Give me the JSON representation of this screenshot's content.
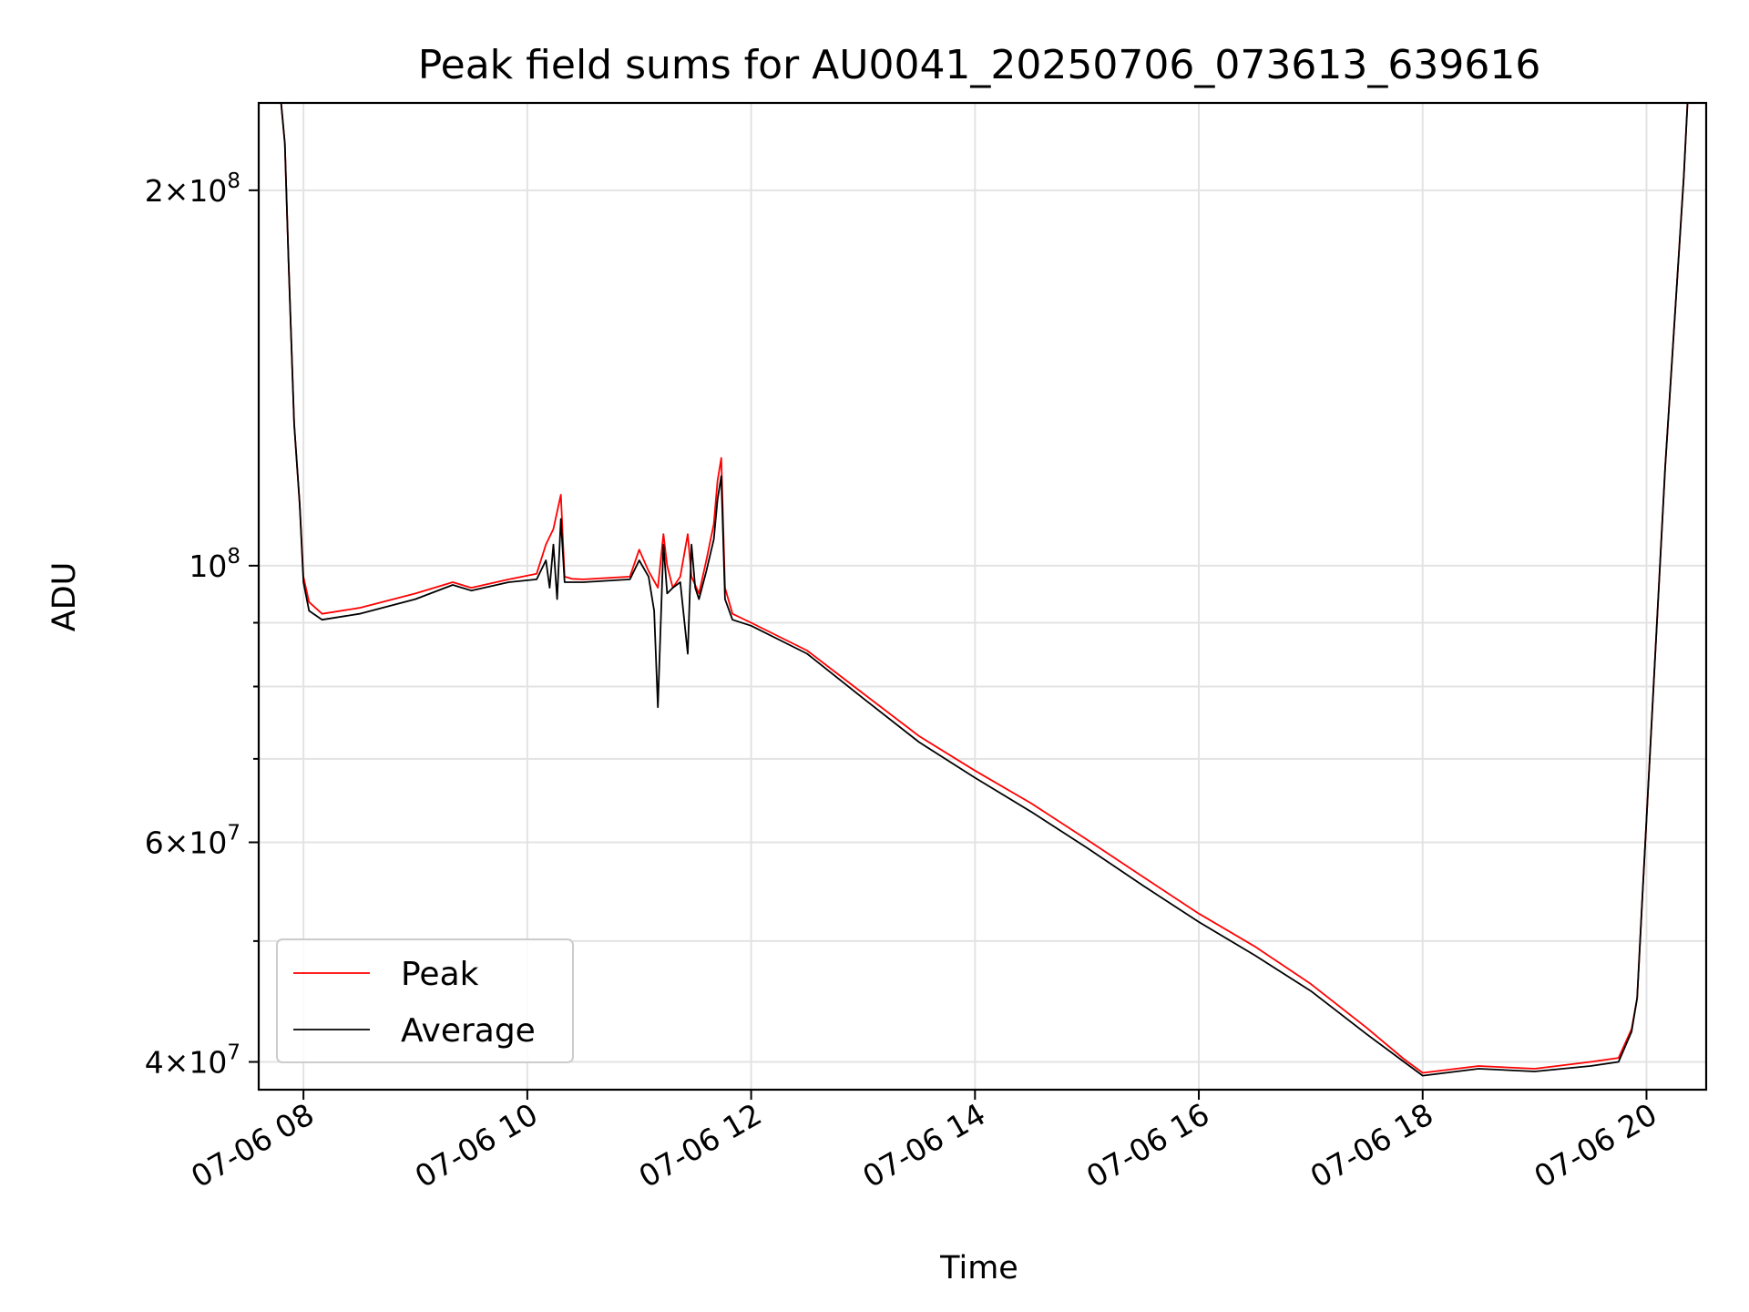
{
  "chart_data": {
    "type": "line",
    "title": "Peak field sums for AU0041_20250706_073613_639616",
    "xlabel": "Time",
    "ylabel": "ADU",
    "y_scale": "log",
    "xlim": [
      "07-06 07:36",
      "07-06 20:32"
    ],
    "ylim": [
      38000000,
      235000000
    ],
    "x_ticks": [
      "07-06 08",
      "07-06 10",
      "07-06 12",
      "07-06 14",
      "07-06 16",
      "07-06 18",
      "07-06 20"
    ],
    "y_ticks": [
      {
        "value": 40000000,
        "mantissa": "4",
        "exponent": "7"
      },
      {
        "value": 60000000,
        "mantissa": "6",
        "exponent": "7"
      },
      {
        "value": 100000000,
        "mantissa": "",
        "exponent": "8"
      },
      {
        "value": 200000000,
        "mantissa": "2",
        "exponent": "8"
      }
    ],
    "y_minor_ticks": [
      50000000,
      70000000,
      80000000,
      90000000
    ],
    "grid": true,
    "legend": {
      "position": "lower-left",
      "entries": [
        {
          "name": "Peak",
          "color": "#ff0000"
        },
        {
          "name": "Average",
          "color": "#000000"
        }
      ]
    },
    "series": [
      {
        "name": "Peak",
        "color": "#ff0000",
        "x": [
          "07:36",
          "07:48",
          "07:50",
          "07:52",
          "07:55",
          "07:58",
          "08:00",
          "08:03",
          "08:10",
          "08:30",
          "09:00",
          "09:20",
          "09:30",
          "09:50",
          "10:05",
          "10:10",
          "10:14",
          "10:18",
          "10:20",
          "10:24",
          "10:30",
          "10:55",
          "11:00",
          "11:05",
          "11:10",
          "11:13",
          "11:15",
          "11:18",
          "11:22",
          "11:26",
          "11:28",
          "11:32",
          "11:36",
          "11:40",
          "11:42",
          "11:44",
          "11:46",
          "11:50",
          "12:00",
          "12:30",
          "13:00",
          "13:30",
          "14:00",
          "14:30",
          "15:00",
          "15:30",
          "16:00",
          "16:30",
          "17:00",
          "17:30",
          "17:50",
          "18:00",
          "18:30",
          "19:00",
          "19:30",
          "19:45",
          "19:52",
          "19:55",
          "19:58",
          "20:10",
          "20:20",
          "20:22"
        ],
        "values": [
          235000000,
          235000000,
          218000000,
          175000000,
          130000000,
          112000000,
          98000000,
          93500000,
          91500000,
          92500000,
          95000000,
          97000000,
          96000000,
          97500000,
          98500000,
          104000000,
          107000000,
          114000000,
          98000000,
          97600000,
          97500000,
          98000000,
          103000000,
          99000000,
          96000000,
          106000000,
          100000000,
          96000000,
          98000000,
          106000000,
          98000000,
          95000000,
          101000000,
          108000000,
          117000000,
          122000000,
          96000000,
          91500000,
          90000000,
          85500000,
          79000000,
          73000000,
          68500000,
          64500000,
          60300000,
          56300000,
          52600000,
          49500000,
          46200000,
          42600000,
          40200000,
          39200000,
          39700000,
          39500000,
          40000000,
          40300000,
          42500000,
          45000000,
          55000000,
          120000000,
          205000000,
          235000000
        ]
      },
      {
        "name": "Average",
        "color": "#000000",
        "x": [
          "07:36",
          "07:48",
          "07:50",
          "07:52",
          "07:55",
          "07:58",
          "08:00",
          "08:03",
          "08:10",
          "08:30",
          "09:00",
          "09:20",
          "09:30",
          "09:50",
          "10:05",
          "10:10",
          "10:12",
          "10:14",
          "10:16",
          "10:18",
          "10:20",
          "10:24",
          "10:30",
          "10:55",
          "11:00",
          "11:05",
          "11:08",
          "11:10",
          "11:13",
          "11:15",
          "11:18",
          "11:22",
          "11:26",
          "11:28",
          "11:30",
          "11:32",
          "11:36",
          "11:40",
          "11:42",
          "11:44",
          "11:46",
          "11:50",
          "12:00",
          "12:30",
          "13:00",
          "13:30",
          "14:00",
          "14:30",
          "15:00",
          "15:30",
          "16:00",
          "16:30",
          "17:00",
          "17:30",
          "17:50",
          "18:00",
          "18:30",
          "19:00",
          "19:30",
          "19:45",
          "19:52",
          "19:55",
          "19:58",
          "20:10",
          "20:20",
          "20:22"
        ],
        "values": [
          235000000,
          235000000,
          218000000,
          175000000,
          130000000,
          112000000,
          97000000,
          92000000,
          90500000,
          91500000,
          94000000,
          96500000,
          95500000,
          97000000,
          97500000,
          101000000,
          96000000,
          104000000,
          94000000,
          109000000,
          97000000,
          97000000,
          97000000,
          97500000,
          101000000,
          98000000,
          92000000,
          77000000,
          104000000,
          95000000,
          96000000,
          97000000,
          85000000,
          104000000,
          96000000,
          94000000,
          99000000,
          105000000,
          113000000,
          118000000,
          94000000,
          90500000,
          89500000,
          85000000,
          78300000,
          72200000,
          67600000,
          63500000,
          59400000,
          55400000,
          51800000,
          48700000,
          45600000,
          42100000,
          40000000,
          39000000,
          39500000,
          39300000,
          39700000,
          40000000,
          42300000,
          45000000,
          55000000,
          120000000,
          205000000,
          235000000
        ]
      }
    ]
  }
}
